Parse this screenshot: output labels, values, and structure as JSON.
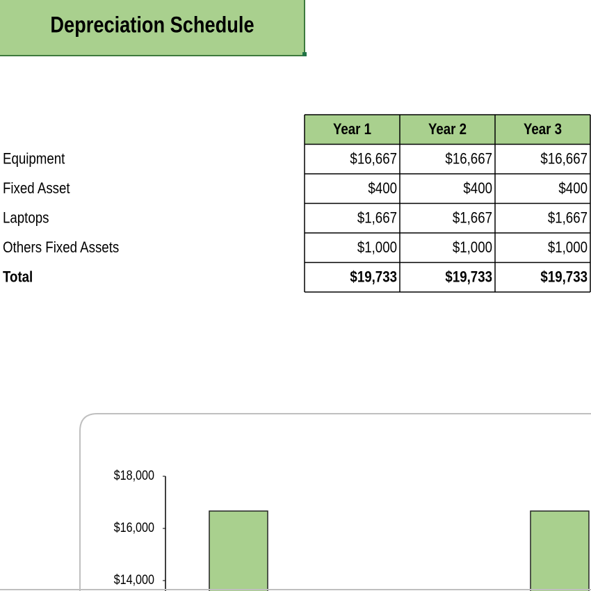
{
  "header": {
    "title": "Depreciation Schedule"
  },
  "table": {
    "columns": [
      "Year 1",
      "Year 2",
      "Year 3"
    ],
    "rows": [
      {
        "label": "Equipment",
        "values": [
          "$16,667",
          "$16,667",
          "$16,667"
        ]
      },
      {
        "label": "Fixed Asset",
        "values": [
          "$400",
          "$400",
          "$400"
        ]
      },
      {
        "label": "Laptops",
        "values": [
          "$1,667",
          "$1,667",
          "$1,667"
        ]
      },
      {
        "label": "Others Fixed Assets",
        "values": [
          "$1,000",
          "$1,000",
          "$1,000"
        ]
      },
      {
        "label": "Total",
        "values": [
          "$19,733",
          "$19,733",
          "$19,733"
        ],
        "bold": true
      }
    ]
  },
  "chart_data": {
    "type": "bar",
    "categories": [
      null,
      null
    ],
    "values": [
      16667,
      16667
    ],
    "color": "#a9d08e",
    "ylim": [
      13600,
      18000
    ],
    "yticks": [
      {
        "value": 14000,
        "label": "$14,000"
      },
      {
        "value": 16000,
        "label": "$16,000"
      },
      {
        "value": 18000,
        "label": "$18,000"
      }
    ]
  }
}
